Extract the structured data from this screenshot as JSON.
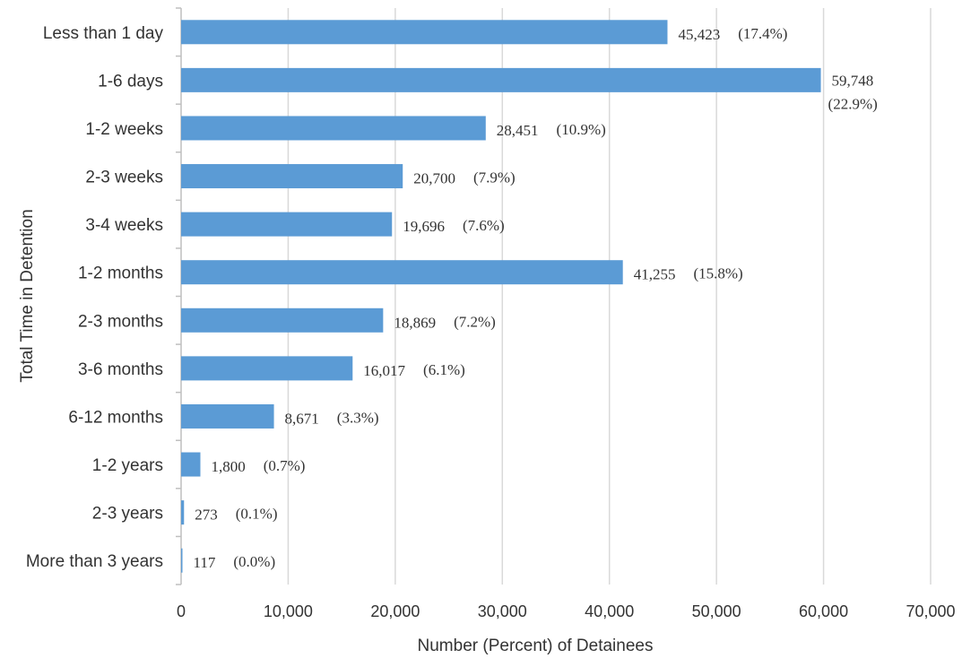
{
  "chart_data": {
    "type": "bar",
    "orientation": "horizontal",
    "categories": [
      "Less than 1 day",
      "1-6 days",
      "1-2 weeks",
      "2-3 weeks",
      "3-4 weeks",
      "1-2 months",
      "2-3 months",
      "3-6 months",
      "6-12 months",
      "1-2 years",
      "2-3 years",
      "More than 3 years"
    ],
    "values": [
      45423,
      59748,
      28451,
      20700,
      19696,
      41255,
      18869,
      16017,
      8671,
      1800,
      273,
      117
    ],
    "value_labels": [
      "45,423",
      "59,748",
      "28,451",
      "20,700",
      "19,696",
      "41,255",
      "18,869",
      "16,017",
      "8,671",
      "1,800",
      "273",
      "117"
    ],
    "percent_labels": [
      "(17.4%)",
      "(22.9%)",
      "(10.9%)",
      "(7.9%)",
      "(7.6%)",
      "(15.8%)",
      "(7.2%)",
      "(6.1%)",
      "(3.3%)",
      "(0.7%)",
      "(0.1%)",
      "(0.0%)"
    ],
    "xlabel": "Number (Percent) of Detainees",
    "ylabel": "Total Time in Detention",
    "xlim": [
      0,
      70000
    ],
    "xticks": [
      0,
      10000,
      20000,
      30000,
      40000,
      50000,
      60000,
      70000
    ],
    "xtick_labels": [
      "0",
      "10,000",
      "20,000",
      "30,000",
      "40,000",
      "50,000",
      "60,000",
      "70,000"
    ],
    "grid": "vertical",
    "legend": "none",
    "colors": {
      "bar": "#5b9bd5",
      "grid": "#d9d9d9",
      "text": "#333333"
    }
  }
}
